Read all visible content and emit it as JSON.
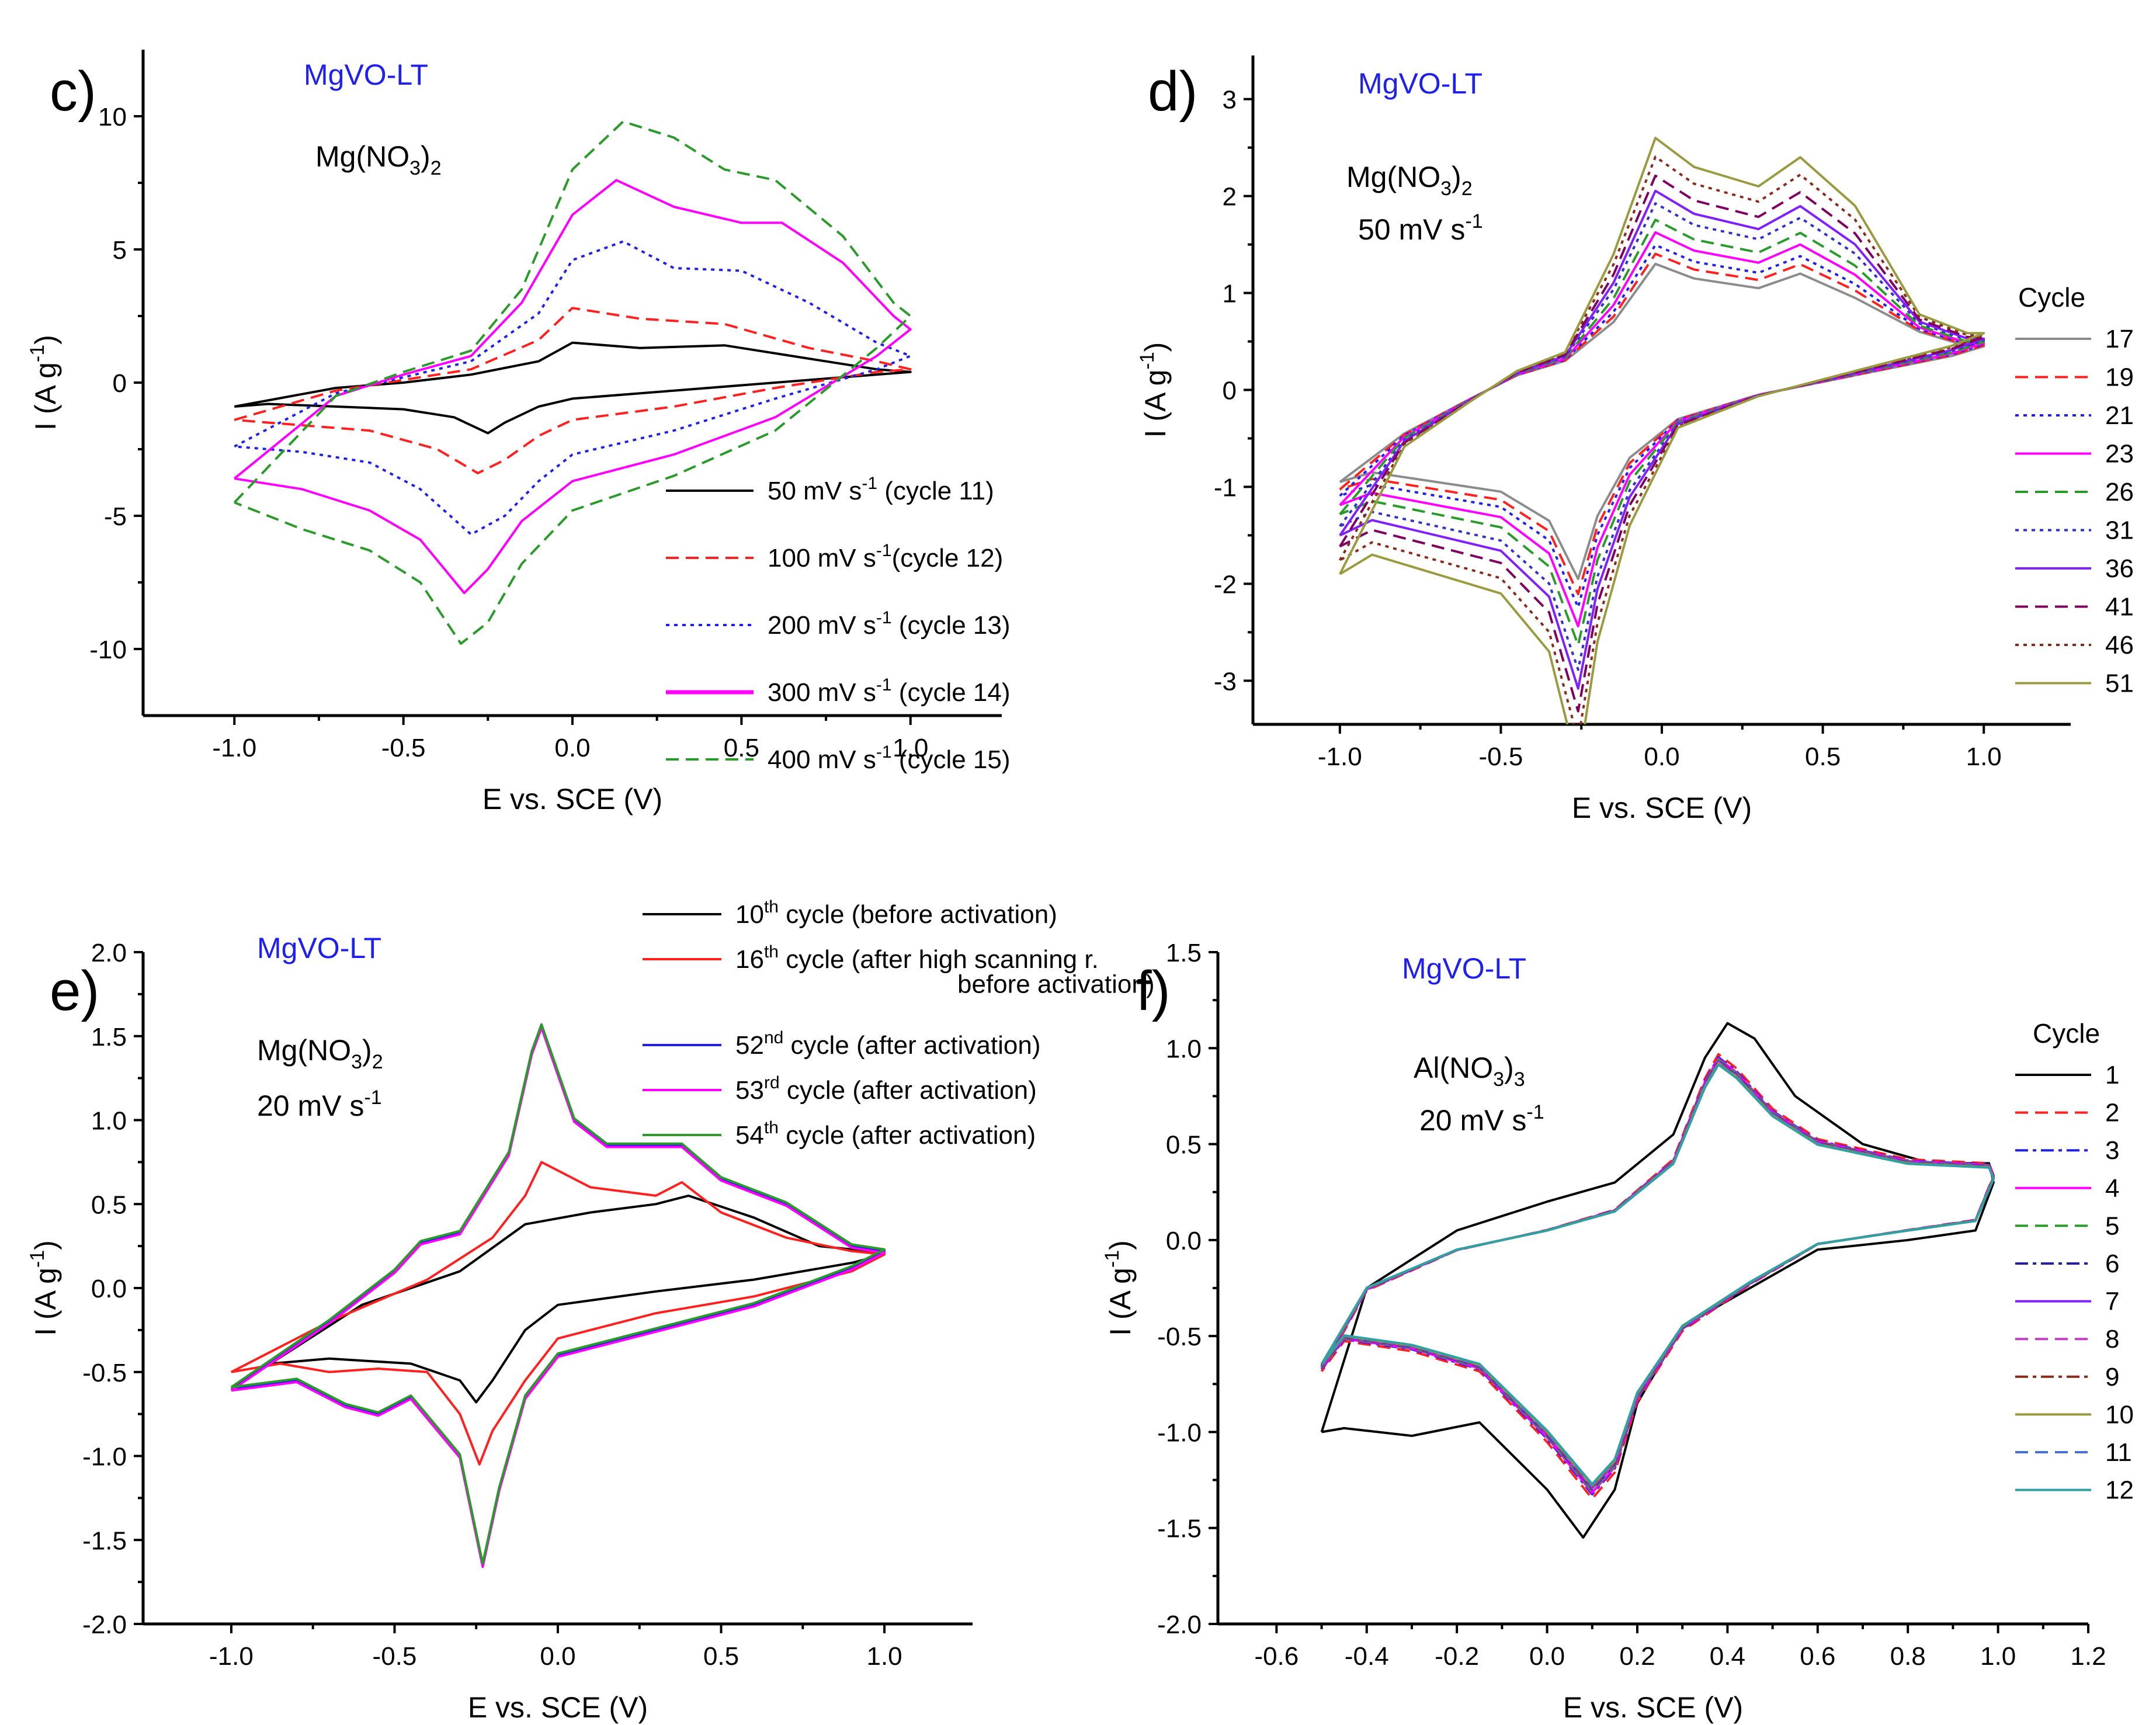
{
  "chart_data": [
    {
      "panel": "c)",
      "type": "line",
      "xlabel": "E vs. SCE (V)",
      "ylabel": "I (A g-1)",
      "xlim": [
        -1.27,
        1.27
      ],
      "ylim": [
        -12.5,
        12.5
      ],
      "xticks": [
        -1.0,
        -0.5,
        0.0,
        0.5,
        1.0
      ],
      "xtick_labels": [
        "-1.0",
        "-0.5",
        "0.0",
        "0.5",
        "1.0"
      ],
      "yticks": [
        -10,
        -5,
        0,
        5,
        10
      ],
      "ytick_labels": [
        "-10",
        "-5",
        "0",
        "5",
        "10"
      ],
      "annotations": {
        "material": "MgVO-LT",
        "electrolyte": "Mg(NO",
        "electrolyte_sub": "3",
        "electrolyte_end": ")",
        "electrolyte_sub2": "2"
      },
      "legend": {
        "placement": "bottom-right",
        "title": ""
      },
      "series": [
        {
          "name": "50 mV s-1 (cycle 11)",
          "label_main": "50 mV s",
          "label_sup": "-1",
          "label_tail": " (cycle 11)",
          "color": "#000000",
          "dash": "solid",
          "x": [
            -1.0,
            -0.7,
            -0.5,
            -0.3,
            -0.1,
            0.0,
            0.2,
            0.45,
            0.7,
            0.9,
            1.0,
            0.9,
            0.6,
            0.3,
            0.0,
            -0.1,
            -0.2,
            -0.25,
            -0.35,
            -0.5,
            -0.7,
            -0.9,
            -1.0
          ],
          "y": [
            -0.9,
            -0.2,
            0.0,
            0.3,
            0.8,
            1.5,
            1.3,
            1.4,
            0.9,
            0.5,
            0.4,
            0.3,
            0.0,
            -0.3,
            -0.6,
            -0.9,
            -1.5,
            -1.9,
            -1.3,
            -1.0,
            -0.9,
            -0.8,
            -0.9
          ]
        },
        {
          "name": "100 mV s-1 (cycle 12)",
          "label_main": "100 mV s",
          "label_sup": "-1",
          "label_tail": "(cycle 12)",
          "color": "#ff2020",
          "dash": "dash",
          "x": [
            -1.0,
            -0.7,
            -0.5,
            -0.3,
            -0.1,
            0.0,
            0.2,
            0.45,
            0.7,
            0.9,
            1.0,
            0.9,
            0.6,
            0.3,
            0.0,
            -0.1,
            -0.2,
            -0.28,
            -0.4,
            -0.6,
            -0.8,
            -1.0
          ],
          "y": [
            -1.4,
            -0.3,
            0.1,
            0.5,
            1.6,
            2.8,
            2.4,
            2.2,
            1.3,
            0.8,
            0.5,
            0.4,
            -0.2,
            -0.9,
            -1.4,
            -2.0,
            -2.9,
            -3.4,
            -2.5,
            -1.8,
            -1.6,
            -1.4
          ]
        },
        {
          "name": "200 mV s-1 (cycle 13)",
          "label_main": "200 mV s",
          "label_sup": "-1",
          "label_tail": " (cycle 13)",
          "color": "#2020ee",
          "dash": "dot",
          "x": [
            -1.0,
            -0.7,
            -0.5,
            -0.3,
            -0.1,
            0.0,
            0.15,
            0.3,
            0.5,
            0.7,
            0.9,
            1.0,
            0.9,
            0.6,
            0.3,
            0.0,
            -0.1,
            -0.2,
            -0.3,
            -0.45,
            -0.6,
            -0.8,
            -1.0
          ],
          "y": [
            -2.4,
            -0.4,
            0.2,
            0.8,
            2.6,
            4.6,
            5.3,
            4.3,
            4.2,
            3.0,
            1.5,
            1.0,
            0.5,
            -0.6,
            -1.8,
            -2.7,
            -3.7,
            -5.0,
            -5.7,
            -4.0,
            -3.0,
            -2.6,
            -2.4
          ]
        },
        {
          "name": "300 mV s-1 (cycle 14)",
          "label_main": "300 mV s",
          "label_sup": "-1",
          "label_tail": " (cycle 14)",
          "color": "#ff00ff",
          "dash": "solid",
          "bold": true,
          "x": [
            -1.0,
            -0.7,
            -0.5,
            -0.3,
            -0.15,
            0.0,
            0.13,
            0.3,
            0.5,
            0.62,
            0.8,
            0.95,
            1.0,
            0.9,
            0.6,
            0.3,
            0.0,
            -0.15,
            -0.25,
            -0.32,
            -0.45,
            -0.6,
            -0.8,
            -1.0
          ],
          "y": [
            -3.6,
            -0.5,
            0.3,
            1.0,
            3.0,
            6.3,
            7.6,
            6.6,
            6.0,
            6.0,
            4.5,
            2.5,
            2.0,
            1.0,
            -1.3,
            -2.7,
            -3.7,
            -5.2,
            -7.0,
            -7.9,
            -5.9,
            -4.8,
            -4.0,
            -3.6
          ]
        },
        {
          "name": "400 mV s-1 (cycle 15)",
          "label_main": "400 mV s",
          "label_sup": "-1",
          "label_tail": " (cycle 15)",
          "color": "#2a9a2a",
          "dash": "dash",
          "x": [
            -1.0,
            -0.7,
            -0.5,
            -0.3,
            -0.15,
            0.0,
            0.15,
            0.3,
            0.45,
            0.6,
            0.8,
            0.95,
            1.0,
            0.9,
            0.6,
            0.3,
            0.0,
            -0.15,
            -0.25,
            -0.33,
            -0.45,
            -0.6,
            -0.8,
            -1.0
          ],
          "y": [
            -4.5,
            -0.5,
            0.4,
            1.2,
            3.5,
            8.0,
            9.8,
            9.2,
            8.0,
            7.6,
            5.5,
            3.0,
            2.5,
            1.3,
            -1.8,
            -3.5,
            -4.8,
            -6.8,
            -9.0,
            -9.8,
            -7.5,
            -6.3,
            -5.5,
            -4.5
          ]
        }
      ]
    },
    {
      "panel": "d)",
      "type": "line",
      "xlabel": "E vs. SCE (V)",
      "ylabel": "I (A g-1)",
      "xlim": [
        -1.27,
        1.27
      ],
      "ylim": [
        -3.45,
        3.45
      ],
      "xticks": [
        -1.0,
        -0.5,
        0.0,
        0.5,
        1.0
      ],
      "xtick_labels": [
        "-1.0",
        "-0.5",
        "0.0",
        "0.5",
        "1.0"
      ],
      "yticks": [
        -3,
        -2,
        -1,
        0,
        1,
        2,
        3
      ],
      "ytick_labels": [
        "-3",
        "-2",
        "-1",
        "0",
        "1",
        "2",
        "3"
      ],
      "annotations": {
        "material": "MgVO-LT",
        "electrolyte": "Mg(NO",
        "electrolyte_sub": "3",
        "electrolyte_end": ")",
        "electrolyte_sub2": "2",
        "rate": "50 mV s",
        "rate_sup": "-1"
      },
      "legend": {
        "placement": "right",
        "title": "Cycle"
      },
      "series": [
        {
          "name": "17",
          "color": "#8c8c8c",
          "dash": "solid",
          "scale": 1.0
        },
        {
          "name": "19",
          "color": "#ff2020",
          "dash": "dash",
          "scale": 1.08
        },
        {
          "name": "21",
          "color": "#2020ee",
          "dash": "dot",
          "scale": 1.15
        },
        {
          "name": "23",
          "color": "#ff00ff",
          "dash": "solid",
          "scale": 1.25
        },
        {
          "name": "26",
          "color": "#2a9a2a",
          "dash": "dash",
          "scale": 1.35
        },
        {
          "name": "31",
          "color": "#3030cc",
          "dash": "dot",
          "scale": 1.48
        },
        {
          "name": "36",
          "color": "#8020ff",
          "dash": "solid",
          "scale": 1.58
        },
        {
          "name": "41",
          "color": "#800060",
          "dash": "dash",
          "scale": 1.7
        },
        {
          "name": "46",
          "color": "#8a2a1a",
          "dash": "dot",
          "scale": 1.85
        },
        {
          "name": "51",
          "color": "#9a9a40",
          "dash": "solid",
          "scale": 2.0
        }
      ],
      "base_curve": {
        "x": [
          -1.0,
          -0.8,
          -0.6,
          -0.45,
          -0.3,
          -0.15,
          -0.02,
          0.1,
          0.3,
          0.43,
          0.6,
          0.8,
          0.95,
          1.0,
          0.9,
          0.6,
          0.3,
          0.05,
          -0.1,
          -0.2,
          -0.26,
          -0.35,
          -0.5,
          -0.7,
          -0.9,
          -1.0
        ],
        "y": [
          -0.95,
          -0.45,
          -0.1,
          0.15,
          0.3,
          0.7,
          1.3,
          1.15,
          1.05,
          1.2,
          0.95,
          0.6,
          0.45,
          0.45,
          0.35,
          0.15,
          -0.05,
          -0.3,
          -0.7,
          -1.3,
          -1.95,
          -1.35,
          -1.05,
          -0.95,
          -0.85,
          -0.95
        ]
      }
    },
    {
      "panel": "e)",
      "type": "line",
      "xlabel": "E vs. SCE (V)",
      "ylabel": "I (A g-1)",
      "xlim": [
        -1.27,
        1.27
      ],
      "ylim": [
        -2.0,
        2.0
      ],
      "xticks": [
        -1.0,
        -0.5,
        0.0,
        0.5,
        1.0
      ],
      "xtick_labels": [
        "-1.0",
        "-0.5",
        "0.0",
        "0.5",
        "1.0"
      ],
      "yticks": [
        -2.0,
        -1.5,
        -1.0,
        -0.5,
        0.0,
        0.5,
        1.0,
        1.5,
        2.0
      ],
      "ytick_labels": [
        "-2.0",
        "-1.5",
        "-1.0",
        "-0.5",
        "0.0",
        "0.5",
        "1.0",
        "1.5",
        "2.0"
      ],
      "annotations": {
        "material": "MgVO-LT",
        "electrolyte": "Mg(NO",
        "electrolyte_sub": "3",
        "electrolyte_end": ")",
        "electrolyte_sub2": "2",
        "rate": "20 mV s",
        "rate_sup": "-1"
      },
      "legend": {
        "placement": "top-right",
        "title": ""
      },
      "series": [
        {
          "name": "10th cycle (before activation)",
          "num": "10",
          "sup": "th",
          "tail": " cycle  (before activation)",
          "tail2": "",
          "color": "#000000",
          "dash": "solid",
          "x": [
            -0.88,
            -0.6,
            -0.3,
            -0.1,
            0.1,
            0.3,
            0.4,
            0.6,
            0.8,
            0.95,
            1.0,
            0.9,
            0.6,
            0.3,
            0.0,
            -0.1,
            -0.2,
            -0.25,
            -0.3,
            -0.45,
            -0.7,
            -0.88
          ],
          "y": [
            -0.45,
            -0.1,
            0.1,
            0.38,
            0.45,
            0.5,
            0.55,
            0.42,
            0.25,
            0.22,
            0.2,
            0.15,
            0.05,
            -0.02,
            -0.1,
            -0.25,
            -0.55,
            -0.68,
            -0.55,
            -0.45,
            -0.42,
            -0.45
          ]
        },
        {
          "name": "16th cycle (after high scanning r. before activation)",
          "num": "16",
          "sup": "th",
          "tail": " cycle (after high scanning r.",
          "tail2": "before activation)",
          "color": "#ff2020",
          "dash": "solid",
          "x": [
            -1.0,
            -0.7,
            -0.4,
            -0.2,
            -0.1,
            -0.05,
            0.1,
            0.3,
            0.38,
            0.5,
            0.7,
            0.9,
            1.0,
            0.9,
            0.6,
            0.3,
            0.0,
            -0.1,
            -0.2,
            -0.24,
            -0.3,
            -0.4,
            -0.55,
            -0.7,
            -0.85,
            -1.0
          ],
          "y": [
            -0.5,
            -0.2,
            0.05,
            0.3,
            0.55,
            0.75,
            0.6,
            0.55,
            0.63,
            0.45,
            0.3,
            0.22,
            0.2,
            0.1,
            -0.05,
            -0.15,
            -0.3,
            -0.55,
            -0.85,
            -1.05,
            -0.75,
            -0.5,
            -0.48,
            -0.5,
            -0.45,
            -0.5
          ]
        },
        {
          "name": "52nd cycle (after activation)",
          "num": "52",
          "sup": "nd",
          "tail": " cycle  (after activation)",
          "tail2": "",
          "color": "#2020ee",
          "dash": "solid",
          "x": [
            -1.0,
            -0.7,
            -0.5,
            -0.42,
            -0.3,
            -0.15,
            -0.08,
            -0.05,
            0.05,
            0.15,
            0.38,
            0.5,
            0.7,
            0.9,
            1.0,
            0.9,
            0.6,
            0.3,
            0.0,
            -0.1,
            -0.18,
            -0.23,
            -0.3,
            -0.45,
            -0.55,
            -0.65,
            -0.8,
            -1.0
          ],
          "y": [
            -0.6,
            -0.2,
            0.1,
            0.27,
            0.33,
            0.8,
            1.4,
            1.56,
            1.0,
            0.85,
            0.85,
            0.65,
            0.5,
            0.25,
            0.22,
            0.12,
            -0.1,
            -0.25,
            -0.4,
            -0.65,
            -1.2,
            -1.65,
            -1.0,
            -0.65,
            -0.75,
            -0.7,
            -0.55,
            -0.6
          ]
        },
        {
          "name": "53rd cycle (after activation)",
          "num": "53",
          "sup": "rd",
          "tail": " cycle  (after activation)",
          "tail2": "",
          "color": "#ff00ff",
          "dash": "solid",
          "shift": -0.01
        },
        {
          "name": "54th cycle (after activation)",
          "num": "54",
          "sup": "th",
          "tail": " cycle  (after activation)",
          "tail2": "",
          "color": "#2a9a2a",
          "dash": "solid",
          "shift": 0.01
        }
      ]
    },
    {
      "panel": "f)",
      "type": "line",
      "xlabel": "E vs. SCE (V)",
      "ylabel": "I (A g-1)",
      "xlim": [
        -0.73,
        1.2
      ],
      "ylim": [
        -2.0,
        1.5
      ],
      "xticks": [
        -0.6,
        -0.4,
        -0.2,
        0.0,
        0.2,
        0.4,
        0.6,
        0.8,
        1.0,
        1.2
      ],
      "xtick_labels": [
        "-0.6",
        "-0.4",
        "-0.2",
        "0.0",
        "0.2",
        "0.4",
        "0.6",
        "0.8",
        "1.0",
        "1.2"
      ],
      "yticks": [
        -2.0,
        -1.5,
        -1.0,
        -0.5,
        0.0,
        0.5,
        1.0,
        1.5
      ],
      "ytick_labels": [
        "-2.0",
        "-1.5",
        "-1.0",
        "-0.5",
        "0.0",
        "0.5",
        "1.0",
        "1.5"
      ],
      "annotations": {
        "material": "MgVO-LT",
        "electrolyte": "Al(NO",
        "electrolyte_sub": "3",
        "electrolyte_end": ")",
        "electrolyte_sub2": "3",
        "rate": "20 mV s",
        "rate_sup": "-1"
      },
      "legend": {
        "placement": "right",
        "title": "Cycle"
      },
      "series": [
        {
          "name": "1",
          "color": "#000000",
          "dash": "solid",
          "k": 1.0
        },
        {
          "name": "2",
          "color": "#ff2020",
          "dash": "dash",
          "k": 0.85
        },
        {
          "name": "3",
          "color": "#2020ee",
          "dash": "dashdot",
          "k": 0.8
        },
        {
          "name": "4",
          "color": "#ff00ff",
          "dash": "solid",
          "k": 0.78
        },
        {
          "name": "5",
          "color": "#2a9a2a",
          "dash": "dash",
          "k": 0.76
        },
        {
          "name": "6",
          "color": "#2020aa",
          "dash": "dashdot",
          "k": 0.74
        },
        {
          "name": "7",
          "color": "#8020ff",
          "dash": "solid",
          "k": 0.73
        },
        {
          "name": "8",
          "color": "#c040c0",
          "dash": "dash",
          "k": 0.72
        },
        {
          "name": "9",
          "color": "#8a2a1a",
          "dash": "dashdot",
          "k": 0.71
        },
        {
          "name": "10",
          "color": "#9a9a40",
          "dash": "solid",
          "k": 0.7
        },
        {
          "name": "11",
          "color": "#4a70d0",
          "dash": "dash",
          "k": 0.69
        },
        {
          "name": "12",
          "color": "#30a0a0",
          "dash": "solid",
          "k": 0.68
        }
      ],
      "first_curve": {
        "x": [
          -0.5,
          -0.4,
          -0.2,
          0.0,
          0.15,
          0.28,
          0.35,
          0.4,
          0.46,
          0.55,
          0.7,
          0.85,
          0.98,
          0.99,
          0.95,
          0.8,
          0.6,
          0.45,
          0.3,
          0.2,
          0.15,
          0.08,
          0.0,
          -0.15,
          -0.3,
          -0.45,
          -0.5
        ],
        "y": [
          -1.0,
          -0.25,
          0.05,
          0.2,
          0.3,
          0.55,
          0.95,
          1.13,
          1.05,
          0.75,
          0.5,
          0.4,
          0.4,
          0.3,
          0.05,
          0.0,
          -0.05,
          -0.25,
          -0.45,
          -0.85,
          -1.3,
          -1.55,
          -1.3,
          -0.95,
          -1.02,
          -0.98,
          -1.0
        ]
      },
      "mean_curve": {
        "x": [
          -0.5,
          -0.4,
          -0.2,
          0.0,
          0.15,
          0.28,
          0.35,
          0.38,
          0.42,
          0.5,
          0.6,
          0.8,
          0.98,
          0.99,
          0.95,
          0.8,
          0.6,
          0.45,
          0.3,
          0.2,
          0.15,
          0.1,
          0.0,
          -0.15,
          -0.3,
          -0.45,
          -0.5
        ],
        "y": [
          -0.65,
          -0.25,
          -0.05,
          0.05,
          0.15,
          0.4,
          0.8,
          0.92,
          0.85,
          0.65,
          0.5,
          0.4,
          0.38,
          0.32,
          0.1,
          0.05,
          -0.02,
          -0.22,
          -0.45,
          -0.8,
          -1.15,
          -1.28,
          -1.0,
          -0.65,
          -0.55,
          -0.5,
          -0.65
        ]
      }
    }
  ]
}
